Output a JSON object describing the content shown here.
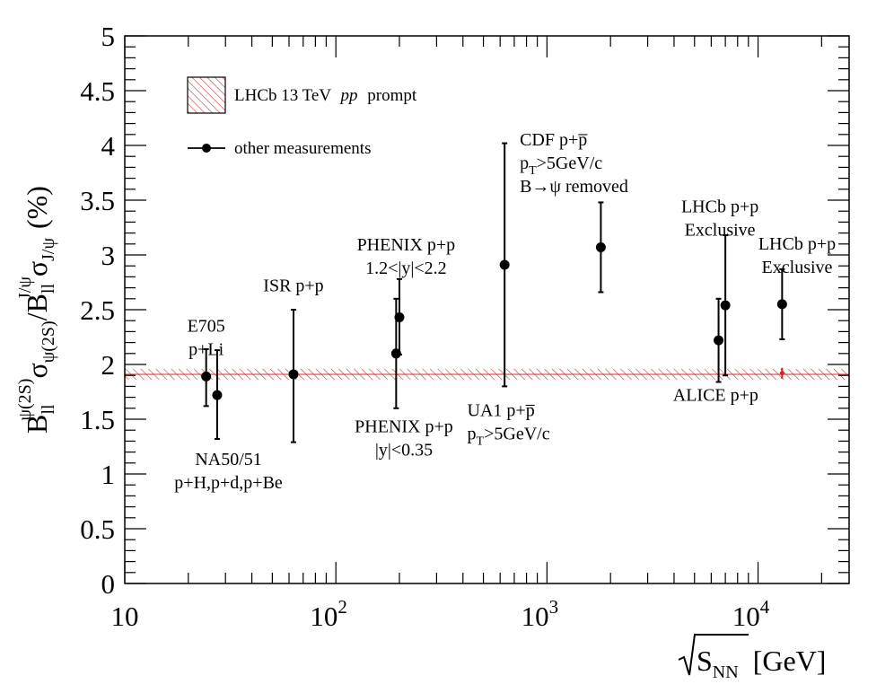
{
  "chart_data": {
    "type": "scatter",
    "title": "",
    "xlabel": "√S_NN [GeV]",
    "xlabel_main": "S",
    "xlabel_sub": "NN",
    "xlabel_unit": "[GeV]",
    "ylabel_text": "B_ll^ψ(2S) σ_ψ(2S) / B_ll^J/ψ σ_J/ψ (%)",
    "ylabel_parts": {
      "b1": "B",
      "b1_sub": "ll",
      "b1_sup": "ψ(2S)",
      "s1": "σ",
      "s1_sub": "ψ(2S)",
      "slash": "/",
      "b2": "B",
      "b2_sub": "ll",
      "b2_sup": "J/ψ",
      "s2": "σ",
      "s2_sub": "J/ψ",
      "unit": "(%)"
    },
    "x_scale": "log",
    "xlim": [
      10,
      27000
    ],
    "ylim": [
      0,
      5
    ],
    "x_ticks": [
      {
        "value": 10,
        "base": "10",
        "exp": ""
      },
      {
        "value": 100,
        "base": "10",
        "exp": "2"
      },
      {
        "value": 1000,
        "base": "10",
        "exp": "3"
      },
      {
        "value": 10000,
        "base": "10",
        "exp": "4"
      }
    ],
    "y_ticks": [
      "0",
      "0.5",
      "1",
      "1.5",
      "2",
      "2.5",
      "3",
      "3.5",
      "4",
      "4.5",
      "5"
    ],
    "grid": false,
    "legend_position": "top-left",
    "legend": [
      {
        "label": "LHCb 13 TeV",
        "italic": "pp",
        "suffix": "prompt",
        "style": "hatched-band"
      },
      {
        "label": "other measurements",
        "style": "marker-line"
      }
    ],
    "band": {
      "name": "LHCb 13 TeV pp prompt",
      "y_low": 1.86,
      "y_high": 1.96,
      "color": "#cc3333"
    },
    "lhcb_point": {
      "x": 13000,
      "y": 1.92,
      "y_low": 1.87,
      "y_high": 1.97,
      "color": "#dd2222"
    },
    "series": [
      {
        "name": "other measurements",
        "points": [
          {
            "x": 24.3,
            "y": 1.89,
            "y_low": 1.62,
            "y_high": 2.14
          },
          {
            "x": 27.4,
            "y": 1.72,
            "y_low": 1.32,
            "y_high": 2.13
          },
          {
            "x": 63,
            "y": 1.91,
            "y_low": 1.29,
            "y_high": 2.5
          },
          {
            "x": 193,
            "y": 2.1,
            "y_low": 1.6,
            "y_high": 2.6
          },
          {
            "x": 200,
            "y": 2.43,
            "y_low": 2.09,
            "y_high": 2.78
          },
          {
            "x": 630,
            "y": 2.91,
            "y_low": 1.8,
            "y_high": 4.02
          },
          {
            "x": 1800,
            "y": 3.07,
            "y_low": 2.66,
            "y_high": 3.48
          },
          {
            "x": 6500,
            "y": 2.22,
            "y_low": 1.84,
            "y_high": 2.6
          },
          {
            "x": 7000,
            "y": 2.54,
            "y_low": 1.9,
            "y_high": 3.18
          },
          {
            "x": 13000,
            "y": 2.55,
            "y_low": 2.23,
            "y_high": 2.87
          }
        ]
      }
    ],
    "annotations": [
      {
        "lines": [
          "E705",
          "p+Li"
        ],
        "x": 24.3,
        "y": 2.3,
        "align": "middle"
      },
      {
        "lines": [
          "NA50/51",
          "p+H,p+d,p+Be"
        ],
        "x": 31,
        "y": 1.08,
        "align": "middle"
      },
      {
        "lines": [
          "ISR p+p"
        ],
        "x": 63,
        "y": 2.67,
        "align": "middle"
      },
      {
        "lines": [
          "PHENIX p+p",
          "1.2<|y|<2.2"
        ],
        "x": 215,
        "y": 3.04,
        "align": "middle"
      },
      {
        "lines": [
          "PHENIX p+p",
          "|y|<0.35"
        ],
        "x": 210,
        "y": 1.38,
        "align": "middle"
      },
      {
        "lines": [
          "UA1 p+p̅",
          "p_T>5GeV/c"
        ],
        "x": 620,
        "y": 1.53,
        "align": "start_offset",
        "runs": [
          {
            "text": "UA1 p+p̅"
          },
          {
            "text": "p",
            "sub": "T",
            "rest": ">5GeV/c"
          }
        ]
      },
      {
        "lines": [
          "CDF p+p̅",
          "p_T>5GeV/c",
          "B→ψ removed"
        ],
        "x": 1100,
        "y": 4.0,
        "align": "start_offset"
      },
      {
        "lines": [
          "LHCb p+p",
          "Exclusive"
        ],
        "x": 6600,
        "y": 3.39,
        "align": "middle"
      },
      {
        "lines": [
          "LHCb p+p",
          "Exclusive"
        ],
        "x": 15300,
        "y": 3.05,
        "align": "middle"
      },
      {
        "lines": [
          "ALICE p+p"
        ],
        "x": 6300,
        "y": 1.67,
        "align": "middle"
      }
    ]
  }
}
